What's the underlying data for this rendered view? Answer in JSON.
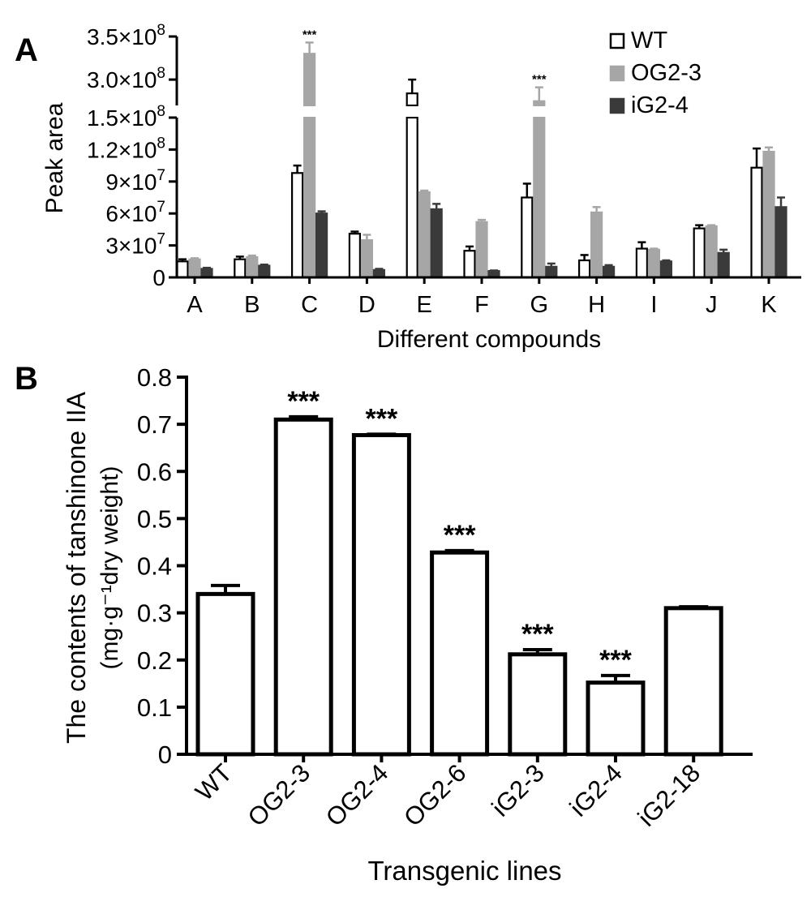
{
  "chart_data": [
    {
      "panel_label": "A",
      "type": "bar",
      "categories": [
        "A",
        "B",
        "C",
        "D",
        "E",
        "F",
        "G",
        "H",
        "I",
        "J",
        "K"
      ],
      "xlabel": "Different compounds",
      "ylabel": "Peak area",
      "ylim": [
        0,
        350000000
      ],
      "axis_break": {
        "lower_max": 150000000,
        "upper_min": 270000000
      },
      "y_ticks": [
        {
          "value": 0,
          "label": "0"
        },
        {
          "value": 30000000,
          "label": "3×10",
          "exp": "7"
        },
        {
          "value": 60000000,
          "label": "6×10",
          "exp": "7"
        },
        {
          "value": 90000000,
          "label": "9×10",
          "exp": "7"
        },
        {
          "value": 120000000,
          "label": "1.2×10",
          "exp": "8"
        },
        {
          "value": 150000000,
          "label": "1.5×10",
          "exp": "8"
        },
        {
          "value": 300000000,
          "label": "3.0×10",
          "exp": "8"
        },
        {
          "value": 350000000,
          "label": "3.5×10",
          "exp": "8"
        }
      ],
      "legend_position": "top-right",
      "series": [
        {
          "name": "WT",
          "color": "#ffffff",
          "values": [
            15000000,
            17000000,
            98000000,
            41000000,
            284000000,
            25000000,
            75000000,
            16000000,
            27000000,
            46000000,
            103000000
          ],
          "errors": [
            2000000,
            2500000,
            7000000,
            2000000,
            16000000,
            4000000,
            13000000,
            5000000,
            6000000,
            3000000,
            18000000
          ]
        },
        {
          "name": "OG2-3",
          "color": "#a6a6a6",
          "values": [
            17000000,
            19000000,
            330000000,
            35000000,
            80000000,
            52000000,
            275000000,
            61000000,
            26000000,
            48000000,
            118000000
          ],
          "errors": [
            1000000,
            1500000,
            13000000,
            5000000,
            1500000,
            2000000,
            16000000,
            5000000,
            1000000,
            1000000,
            4000000
          ]
        },
        {
          "name": "iG2-4",
          "color": "#3a3a3a",
          "values": [
            8000000,
            11000000,
            60000000,
            7000000,
            64000000,
            6000000,
            10000000,
            10000000,
            15000000,
            23000000,
            66000000
          ],
          "errors": [
            1000000,
            1000000,
            2000000,
            1000000,
            5000000,
            500000,
            3000000,
            1500000,
            1000000,
            3000000,
            9000000
          ]
        }
      ],
      "annotations": [
        {
          "category": "C",
          "text": "***"
        },
        {
          "category": "G",
          "text": "***"
        }
      ]
    },
    {
      "panel_label": "B",
      "type": "bar",
      "categories": [
        "WT",
        "OG2-3",
        "OG2-4",
        "OG2-6",
        "iG2-3",
        "iG2-4",
        "iG2-18"
      ],
      "values": [
        0.34,
        0.71,
        0.677,
        0.428,
        0.212,
        0.152,
        0.31
      ],
      "errors": [
        0.018,
        0.006,
        0.002,
        0.004,
        0.01,
        0.015,
        0.003
      ],
      "significance": [
        "",
        "***",
        "***",
        "***",
        "***",
        "***",
        ""
      ],
      "xlabel": "Transgenic lines",
      "ylabel_line1": "The contents of tanshinone IIA",
      "ylabel_line2": "(mg·g⁻¹dry weight)",
      "ylim": [
        0,
        0.8
      ],
      "y_ticks": [
        "0",
        "0.1",
        "0.2",
        "0.3",
        "0.4",
        "0.5",
        "0.6",
        "0.7",
        "0.8"
      ],
      "bar_fill": "#ffffff"
    }
  ]
}
